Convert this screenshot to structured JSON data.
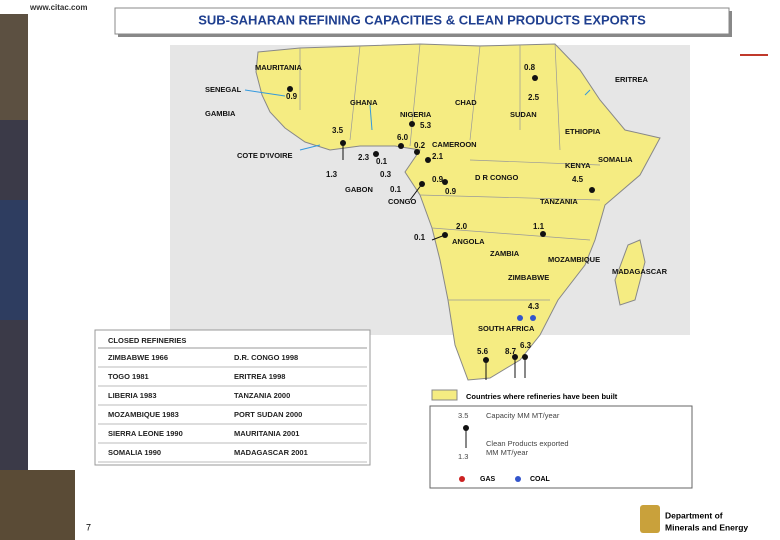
{
  "header": {
    "url": "www.citac.com",
    "title": "SUB-SAHARAN REFINING CAPACITIES & CLEAN PRODUCTS EXPORTS"
  },
  "map": {
    "countries": [
      "MAURITANIA",
      "SENEGAL",
      "GAMBIA",
      "GHANA",
      "CHAD",
      "NIGERIA",
      "SUDAN",
      "ERITREA",
      "ETHIOPIA",
      "COTE D'IVOIRE",
      "CAMEROON",
      "KENYA",
      "SOMALIA",
      "D R CONGO",
      "GABON",
      "CONGO",
      "TANZANIA",
      "ANGOLA",
      "ZAMBIA",
      "MOZAMBIQUE",
      "ZIMBABWE",
      "MADAGASCAR",
      "SOUTH AFRICA"
    ],
    "figures": [
      "0.8",
      "2.5",
      "0.9",
      "3.5",
      "5.3",
      "6.0",
      "0.2",
      "2.1",
      "2.3",
      "0.1",
      "1.3",
      "0.3",
      "0.9",
      "0.1",
      "0.9",
      "4.5",
      "2.0",
      "1.1",
      "0.1",
      "4.3",
      "5.6",
      "8.7",
      "6.3"
    ]
  },
  "closed_refineries": {
    "title": "CLOSED REFINERIES",
    "rows": [
      [
        "ZIMBABWE 1966",
        "D.R. CONGO 1998"
      ],
      [
        "TOGO 1981",
        "ERITREA 1998"
      ],
      [
        "LIBERIA 1983",
        "TANZANIA 2000"
      ],
      [
        "MOZAMBIQUE 1983",
        "PORT SUDAN 2000"
      ],
      [
        "SIERRA LEONE 1990",
        "MAURITANIA 2001"
      ],
      [
        "SOMALIA 1990",
        "MADAGASCAR 2001"
      ]
    ]
  },
  "legend": {
    "built": "Countries where refineries have been built",
    "capacity_value": "3.5",
    "capacity": "Capacity  MM MT/year",
    "exports_line1": "Clean Products exported",
    "exports_line2": "MM MT/year",
    "exports_value": "1.3",
    "gas": "GAS",
    "coal": "COAL"
  },
  "footer": {
    "page": "7",
    "department_line1": "Department of",
    "department_line2": "Minerals and Energy"
  }
}
